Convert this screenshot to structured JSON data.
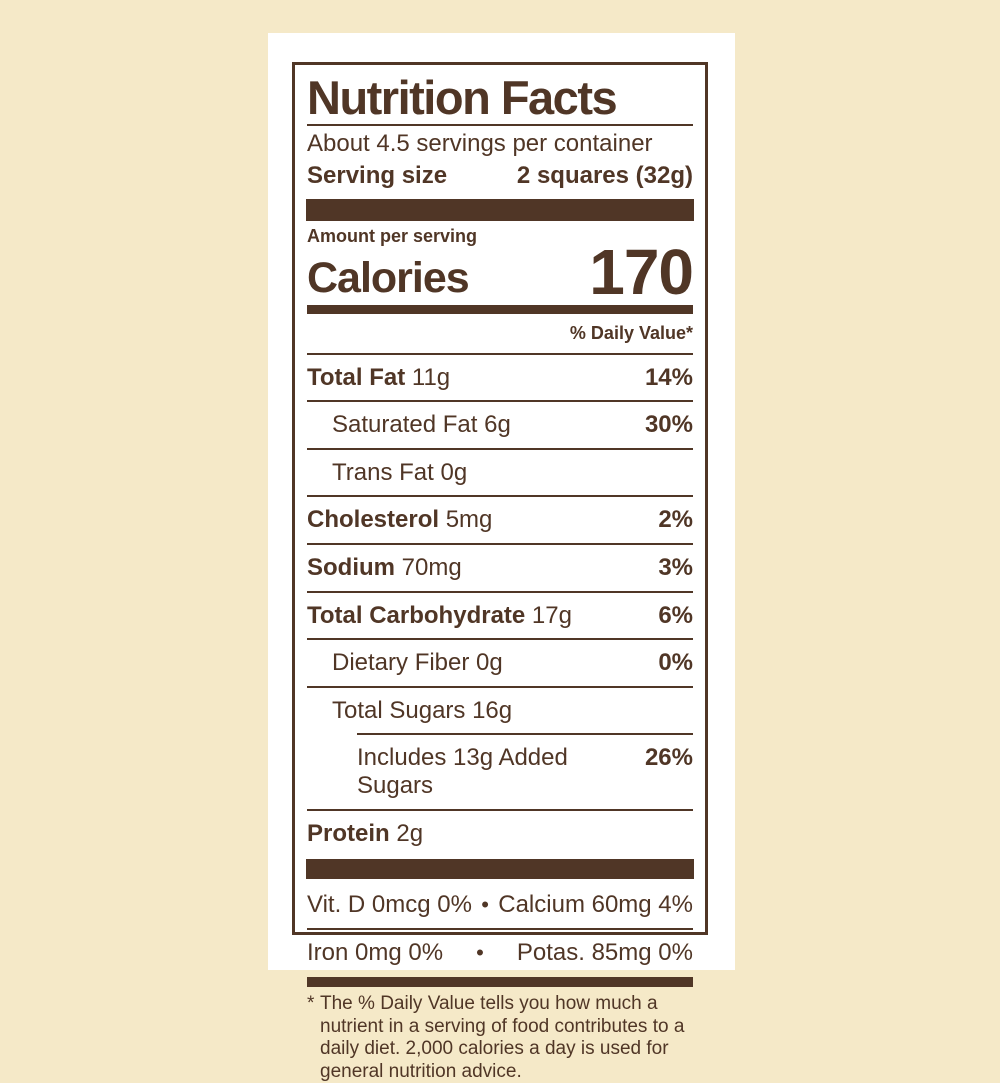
{
  "colors": {
    "background": "#f5e9c8",
    "panel": "#ffffff",
    "ink": "#503626"
  },
  "label": {
    "title": "Nutrition Facts",
    "servings_per_container": "About 4.5 servings per container",
    "serving_size_label": "Serving size",
    "serving_size_value": "2 squares (32g)",
    "amount_per_serving": "Amount per serving",
    "calories_label": "Calories",
    "calories_value": "170",
    "daily_value_header": "% Daily Value*",
    "rows": [
      {
        "name": "Total Fat",
        "amount": "11g",
        "dv": "14%",
        "bold_name": true,
        "indent": 0,
        "sep_above": "full"
      },
      {
        "name": "Saturated Fat",
        "amount": "6g",
        "dv": "30%",
        "bold_name": false,
        "indent": 1,
        "sep_above": "full"
      },
      {
        "name": "Trans Fat",
        "amount": "0g",
        "dv": "",
        "bold_name": false,
        "indent": 1,
        "sep_above": "full"
      },
      {
        "name": "Cholesterol",
        "amount": "5mg",
        "dv": "2%",
        "bold_name": true,
        "indent": 0,
        "sep_above": "full"
      },
      {
        "name": "Sodium",
        "amount": "70mg",
        "dv": "3%",
        "bold_name": true,
        "indent": 0,
        "sep_above": "full"
      },
      {
        "name": "Total Carbohydrate",
        "amount": "17g",
        "dv": "6%",
        "bold_name": true,
        "indent": 0,
        "sep_above": "full"
      },
      {
        "name": "Dietary Fiber",
        "amount": "0g",
        "dv": "0%",
        "bold_name": false,
        "indent": 1,
        "sep_above": "full"
      },
      {
        "name": "Total Sugars",
        "amount": "16g",
        "dv": "",
        "bold_name": false,
        "indent": 1,
        "sep_above": "full"
      },
      {
        "name": "Includes 13g Added Sugars",
        "amount": "",
        "dv": "26%",
        "bold_name": false,
        "indent": 2,
        "sep_above": "indent"
      },
      {
        "name": "Protein",
        "amount": "2g",
        "dv": "",
        "bold_name": true,
        "indent": 0,
        "sep_above": "full"
      }
    ],
    "micronutrients": [
      {
        "left": "Vit. D 0mcg 0%",
        "bullet": "•",
        "right": "Calcium 60mg 4%",
        "sep_above": false
      },
      {
        "left": "Iron 0mg 0%",
        "bullet": "•",
        "right": "Potas. 85mg 0%",
        "sep_above": true
      }
    ],
    "footnote_marker": "*",
    "footnote": "The % Daily Value tells you how much a nutrient in a serving of food contributes to a daily diet. 2,000 calories a day is used for general nutrition advice."
  }
}
